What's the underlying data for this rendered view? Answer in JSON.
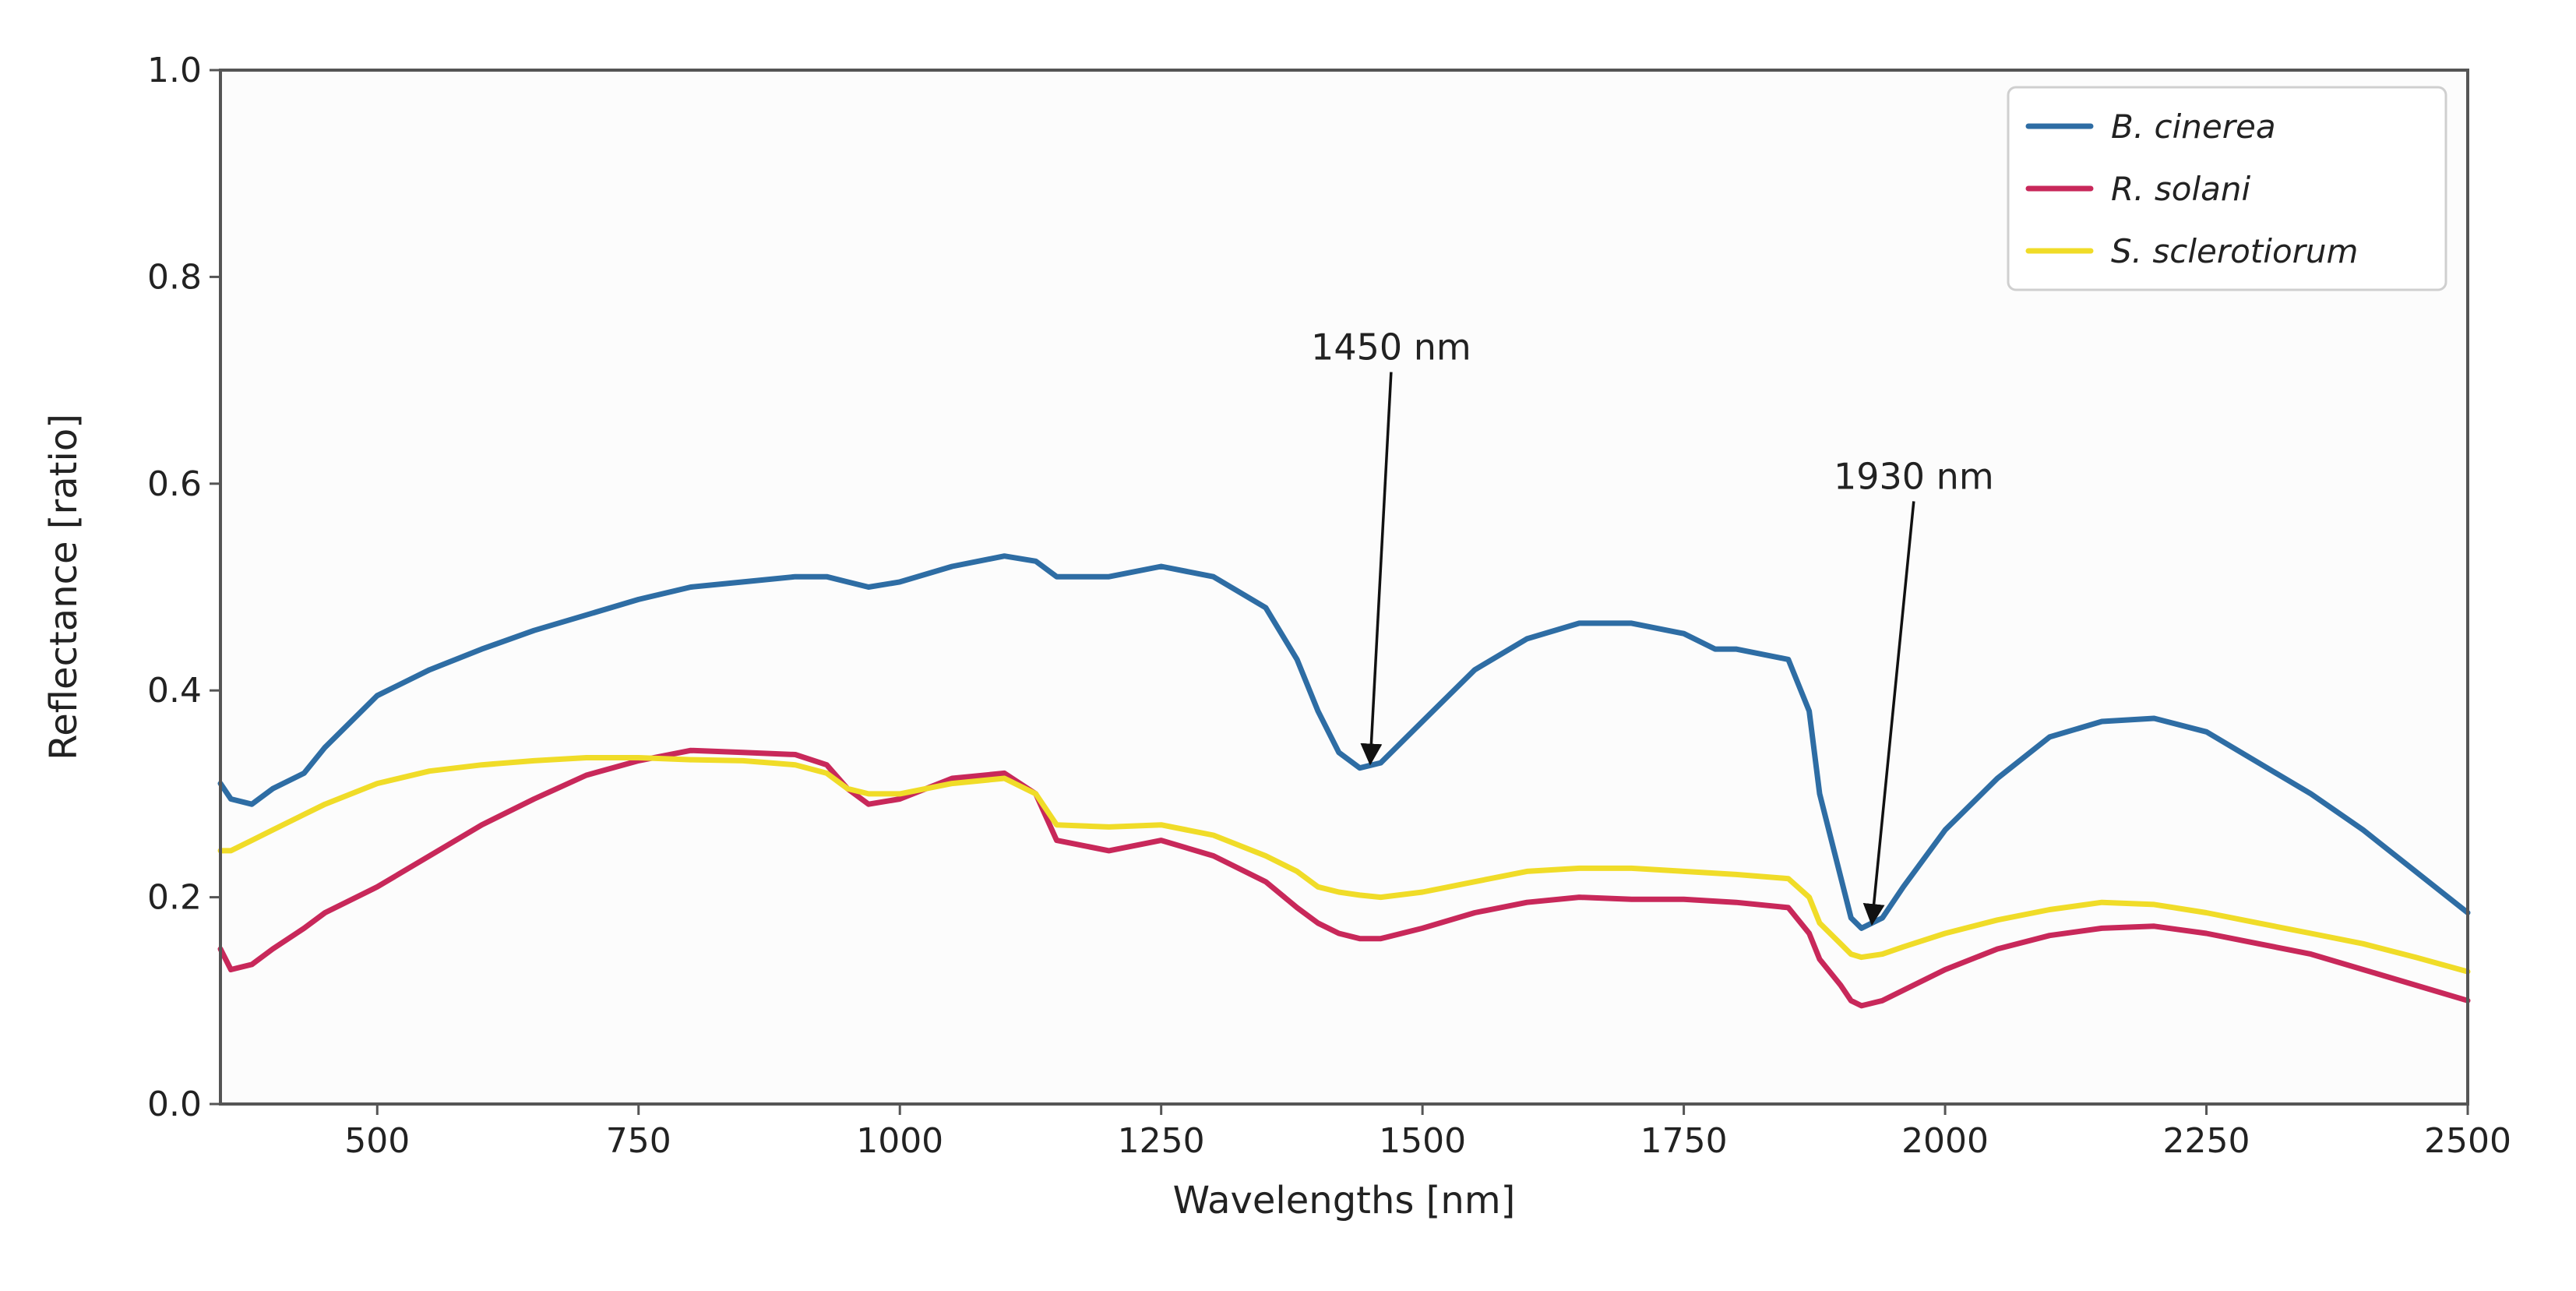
{
  "chart_data": {
    "type": "line",
    "title": "",
    "xlabel": "Wavelengths [nm]",
    "ylabel": "Reflectance [ratio]",
    "xlim": [
      350,
      2500
    ],
    "ylim": [
      0.0,
      1.0
    ],
    "xticks": [
      500,
      750,
      1000,
      1250,
      1500,
      1750,
      2000,
      2250,
      2500
    ],
    "yticks": [
      0.0,
      0.2,
      0.4,
      0.6,
      0.8,
      1.0
    ],
    "xtick_labels": [
      "500",
      "750",
      "1000",
      "1250",
      "1500",
      "1750",
      "2000",
      "2250",
      "2500"
    ],
    "ytick_labels": [
      "0.0",
      "0.2",
      "0.4",
      "0.6",
      "0.8",
      "1.0"
    ],
    "grid": false,
    "legend_position": "top-right",
    "series": [
      {
        "name": "B. cinerea",
        "color": "#2e6da4",
        "x": [
          350,
          360,
          380,
          400,
          430,
          450,
          500,
          550,
          600,
          650,
          700,
          750,
          800,
          850,
          900,
          930,
          950,
          970,
          1000,
          1050,
          1100,
          1130,
          1150,
          1200,
          1250,
          1300,
          1350,
          1380,
          1400,
          1420,
          1440,
          1460,
          1500,
          1550,
          1600,
          1650,
          1700,
          1750,
          1780,
          1800,
          1850,
          1870,
          1880,
          1900,
          1910,
          1920,
          1940,
          1960,
          2000,
          2050,
          2100,
          2150,
          2200,
          2250,
          2300,
          2350,
          2400,
          2450,
          2500
        ],
        "values": [
          0.31,
          0.295,
          0.29,
          0.305,
          0.32,
          0.345,
          0.395,
          0.42,
          0.44,
          0.458,
          0.473,
          0.488,
          0.5,
          0.505,
          0.51,
          0.51,
          0.505,
          0.5,
          0.505,
          0.52,
          0.53,
          0.525,
          0.51,
          0.51,
          0.52,
          0.51,
          0.48,
          0.43,
          0.38,
          0.34,
          0.325,
          0.33,
          0.37,
          0.42,
          0.45,
          0.465,
          0.465,
          0.455,
          0.44,
          0.44,
          0.43,
          0.38,
          0.3,
          0.22,
          0.18,
          0.17,
          0.18,
          0.21,
          0.265,
          0.315,
          0.355,
          0.37,
          0.373,
          0.36,
          0.33,
          0.3,
          0.265,
          0.225,
          0.185
        ]
      },
      {
        "name": "R. solani",
        "color": "#c8285a",
        "x": [
          350,
          360,
          380,
          400,
          430,
          450,
          500,
          550,
          600,
          650,
          700,
          750,
          800,
          850,
          900,
          930,
          950,
          970,
          1000,
          1050,
          1100,
          1130,
          1150,
          1200,
          1250,
          1300,
          1350,
          1380,
          1400,
          1420,
          1440,
          1460,
          1500,
          1550,
          1600,
          1650,
          1700,
          1750,
          1800,
          1850,
          1870,
          1880,
          1900,
          1910,
          1920,
          1940,
          1960,
          2000,
          2050,
          2100,
          2150,
          2200,
          2250,
          2300,
          2350,
          2400,
          2450,
          2500
        ],
        "values": [
          0.15,
          0.13,
          0.135,
          0.15,
          0.17,
          0.185,
          0.21,
          0.24,
          0.27,
          0.295,
          0.318,
          0.332,
          0.342,
          0.34,
          0.338,
          0.328,
          0.305,
          0.29,
          0.295,
          0.315,
          0.32,
          0.3,
          0.255,
          0.245,
          0.255,
          0.24,
          0.215,
          0.19,
          0.175,
          0.165,
          0.16,
          0.16,
          0.17,
          0.185,
          0.195,
          0.2,
          0.198,
          0.198,
          0.195,
          0.19,
          0.165,
          0.14,
          0.115,
          0.1,
          0.095,
          0.1,
          0.11,
          0.13,
          0.15,
          0.163,
          0.17,
          0.172,
          0.165,
          0.155,
          0.145,
          0.13,
          0.115,
          0.1
        ]
      },
      {
        "name": "S. sclerotiorum",
        "color": "#f0dc28",
        "x": [
          350,
          360,
          380,
          400,
          430,
          450,
          500,
          550,
          600,
          650,
          700,
          750,
          800,
          850,
          900,
          930,
          950,
          970,
          1000,
          1050,
          1100,
          1130,
          1150,
          1200,
          1250,
          1300,
          1350,
          1380,
          1400,
          1420,
          1440,
          1460,
          1500,
          1550,
          1600,
          1650,
          1700,
          1750,
          1800,
          1850,
          1870,
          1880,
          1900,
          1910,
          1920,
          1940,
          1960,
          2000,
          2050,
          2100,
          2150,
          2200,
          2250,
          2300,
          2350,
          2400,
          2450,
          2500
        ],
        "values": [
          0.245,
          0.245,
          0.255,
          0.265,
          0.28,
          0.29,
          0.31,
          0.322,
          0.328,
          0.332,
          0.335,
          0.335,
          0.333,
          0.332,
          0.328,
          0.32,
          0.305,
          0.3,
          0.3,
          0.31,
          0.315,
          0.3,
          0.27,
          0.268,
          0.27,
          0.26,
          0.24,
          0.225,
          0.21,
          0.205,
          0.202,
          0.2,
          0.205,
          0.215,
          0.225,
          0.228,
          0.228,
          0.225,
          0.222,
          0.218,
          0.2,
          0.175,
          0.155,
          0.145,
          0.142,
          0.145,
          0.152,
          0.165,
          0.178,
          0.188,
          0.195,
          0.193,
          0.185,
          0.175,
          0.165,
          0.155,
          0.142,
          0.128
        ]
      }
    ],
    "annotations": [
      {
        "text": "1450 nm",
        "target_x": 1450,
        "target_y": 0.325,
        "label_x": 1470,
        "label_y": 0.72
      },
      {
        "text": "1930 nm",
        "target_x": 1930,
        "target_y": 0.17,
        "label_x": 1970,
        "label_y": 0.595
      }
    ]
  }
}
